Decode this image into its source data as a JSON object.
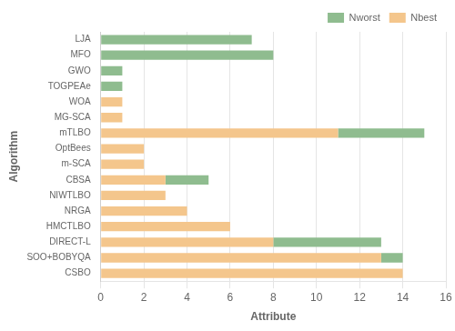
{
  "chart_data": {
    "type": "bar",
    "orientation": "horizontal",
    "stacked": true,
    "categories": [
      "LJA",
      "MFO",
      "GWO",
      "TOGPEAe",
      "WOA",
      "MG-SCA",
      "mTLBO",
      "OptBees",
      "m-SCA",
      "CBSA",
      "NIWTLBO",
      "NRGA",
      "HMCTLBO",
      "DIRECT-L",
      "SOO+BOBYQA",
      "CSBO"
    ],
    "series": [
      {
        "name": "Nbest",
        "color": "#f4c68c",
        "values": [
          0,
          0,
          0,
          0,
          1,
          1,
          11,
          2,
          2,
          3,
          3,
          4,
          6,
          8,
          13,
          14
        ]
      },
      {
        "name": "Nworst",
        "color": "#8fbc8f",
        "values": [
          7,
          8,
          1,
          1,
          0,
          0,
          4,
          0,
          0,
          2,
          0,
          0,
          0,
          5,
          1,
          0
        ]
      }
    ],
    "xlabel": "Attribute",
    "ylabel": "Algorithm",
    "xlim": [
      0,
      16
    ],
    "xticks": [
      0,
      2,
      4,
      6,
      8,
      10,
      12,
      14,
      16
    ],
    "grid": true,
    "legend": "upper right"
  }
}
